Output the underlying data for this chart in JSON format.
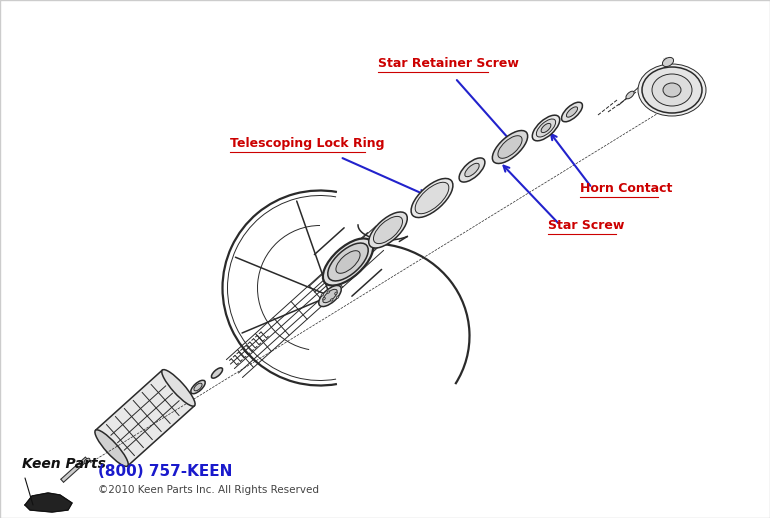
{
  "background_color": "#ffffff",
  "labels": {
    "star_retainer_screw": "Star Retainer Screw",
    "telescoping_lock_ring": "Telescoping Lock Ring",
    "horn_contact": "Horn Contact",
    "star_screw": "Star Screw"
  },
  "label_colors": {
    "star_retainer_screw": "#cc0000",
    "telescoping_lock_ring": "#cc0000",
    "horn_contact": "#cc0000",
    "star_screw": "#cc0000"
  },
  "arrow_color": "#2222cc",
  "footer_phone": "(800) 757-KEEN",
  "footer_copyright": "©2010 Keen Parts Inc. All Rights Reserved",
  "footer_color": "#1a1acc",
  "diagram_line_color": "#2a2a2a"
}
